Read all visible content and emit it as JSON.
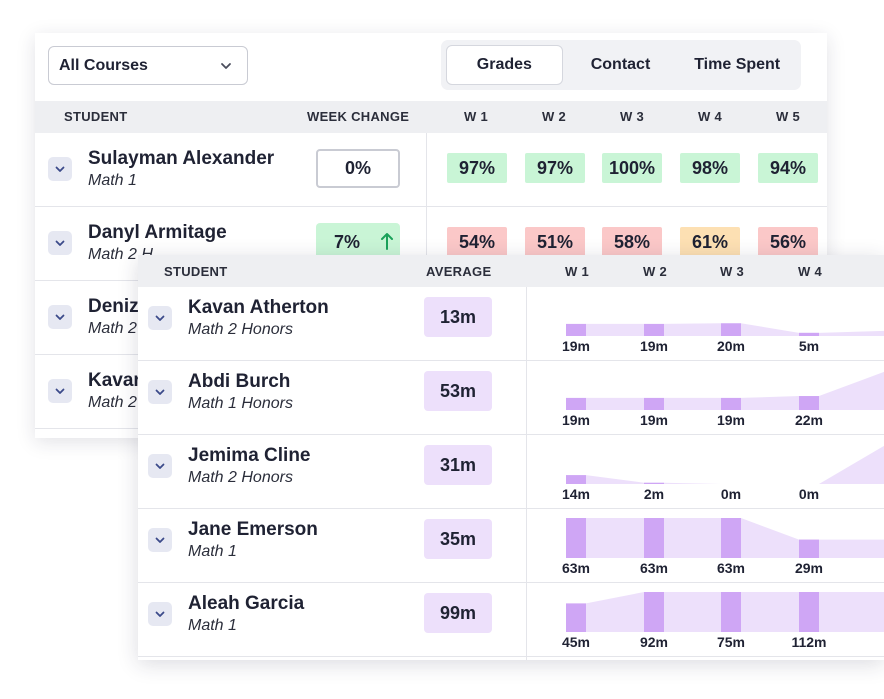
{
  "colors": {
    "accent_purple": "#cfa6f5",
    "purple_fill": "#ede0fb",
    "grade_green": "#c9f5d6",
    "grade_red": "#fbc8c8",
    "grade_orange": "#fde0b3",
    "arrow_green": "#1aa25a"
  },
  "grades_view": {
    "filter": {
      "selected": "All Courses",
      "icon": "chevron-down-icon"
    },
    "tabs": [
      {
        "label": "Grades",
        "active": true
      },
      {
        "label": "Contact",
        "active": false
      },
      {
        "label": "Time Spent",
        "active": false
      }
    ],
    "columns": {
      "student": "STUDENT",
      "week_change": "WEEK CHANGE",
      "weeks": [
        "W 1",
        "W 2",
        "W 3",
        "W 4",
        "W 5"
      ]
    },
    "rows": [
      {
        "name": "Sulayman Alexander",
        "course": "Math 1",
        "change": "0%",
        "trend": "neutral",
        "grades": [
          {
            "v": "97%",
            "c": "green"
          },
          {
            "v": "97%",
            "c": "green"
          },
          {
            "v": "100%",
            "c": "green"
          },
          {
            "v": "98%",
            "c": "green"
          },
          {
            "v": "94%",
            "c": "green"
          }
        ]
      },
      {
        "name": "Danyl Armitage",
        "course": "Math 2 H",
        "change": "7%",
        "trend": "up",
        "grades": [
          {
            "v": "54%",
            "c": "red"
          },
          {
            "v": "51%",
            "c": "red"
          },
          {
            "v": "58%",
            "c": "red"
          },
          {
            "v": "61%",
            "c": "orange"
          },
          {
            "v": "56%",
            "c": "red"
          }
        ]
      },
      {
        "name": "Deniz",
        "course": "Math 2"
      },
      {
        "name": "Kavar",
        "course": "Math 2"
      }
    ]
  },
  "time_view": {
    "columns": {
      "student": "STUDENT",
      "average": "AVERAGE",
      "weeks": [
        "W 1",
        "W 2",
        "W 3",
        "W 4"
      ]
    },
    "rows": [
      {
        "name": "Kavan Atherton",
        "course": "Math 2 Honors",
        "average": "13m",
        "weeks": [
          "19m",
          "19m",
          "20m",
          "5m"
        ],
        "minutes": [
          19,
          19,
          20,
          5
        ],
        "next_minutes": 8
      },
      {
        "name": "Abdi Burch",
        "course": "Math 1 Honors",
        "average": "53m",
        "weeks": [
          "19m",
          "19m",
          "19m",
          "22m"
        ],
        "minutes": [
          19,
          19,
          19,
          22
        ],
        "next_minutes": 60
      },
      {
        "name": "Jemima Cline",
        "course": "Math 2 Honors",
        "average": "31m",
        "weeks": [
          "14m",
          "2m",
          "0m",
          "0m"
        ],
        "minutes": [
          14,
          2,
          0,
          0
        ],
        "next_minutes": 60
      },
      {
        "name": "Jane Emerson",
        "course": "Math 1",
        "average": "35m",
        "weeks": [
          "63m",
          "63m",
          "63m",
          "29m"
        ],
        "minutes": [
          63,
          63,
          63,
          29
        ],
        "next_minutes": 29
      },
      {
        "name": "Aleah Garcia",
        "course": "Math 1",
        "average": "99m",
        "weeks": [
          "45m",
          "92m",
          "75m",
          "112m"
        ],
        "minutes": [
          45,
          92,
          75,
          112
        ],
        "next_minutes": 130
      }
    ]
  }
}
